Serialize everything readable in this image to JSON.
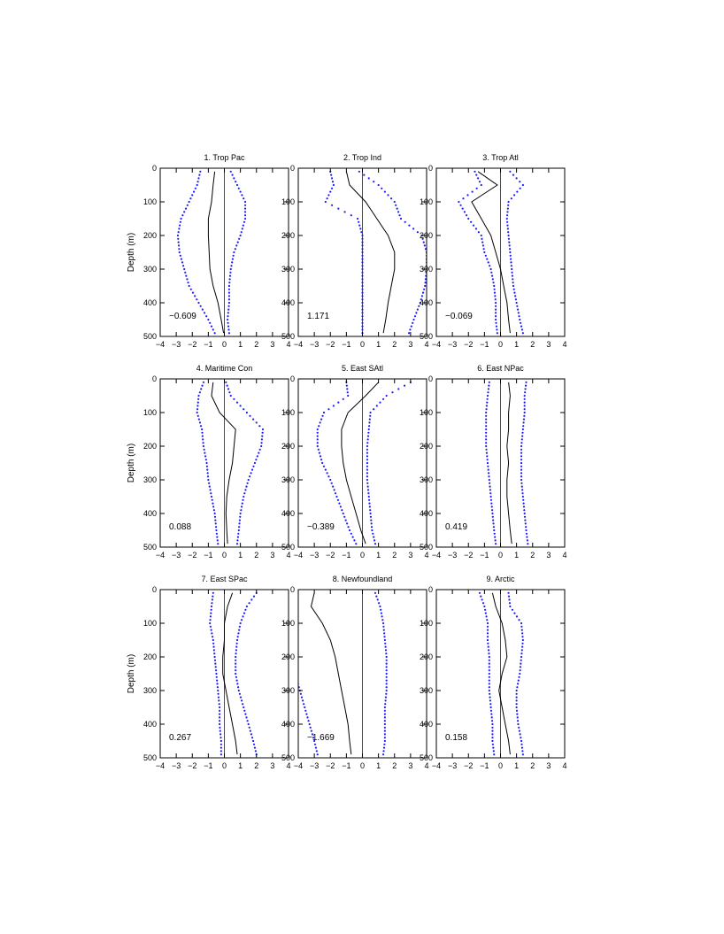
{
  "figure": {
    "ylabel": "Depth (m)"
  },
  "chart_data": [
    {
      "type": "line",
      "title": "1. Trop Pac",
      "annotation": "−0.609",
      "xlim": [
        -4,
        4
      ],
      "ylim": [
        0,
        500
      ],
      "y_inverted": true,
      "grid": false,
      "xticks": [
        -4,
        -3,
        -2,
        -1,
        0,
        1,
        2,
        3,
        4
      ],
      "yticks": [
        0,
        100,
        200,
        300,
        400,
        500
      ],
      "reference_x": 0,
      "depth": [
        10,
        50,
        100,
        150,
        200,
        250,
        300,
        350,
        400,
        450,
        490
      ],
      "mean": [
        -0.6,
        -0.7,
        -0.8,
        -1.0,
        -1.0,
        -0.95,
        -0.9,
        -0.7,
        -0.4,
        -0.2,
        -0.05
      ],
      "lower": [
        -1.5,
        -1.7,
        -2.2,
        -2.7,
        -2.9,
        -2.8,
        -2.5,
        -2.2,
        -1.6,
        -1.0,
        -0.6
      ],
      "upper": [
        0.4,
        0.8,
        1.3,
        1.3,
        1.0,
        0.6,
        0.4,
        0.3,
        0.3,
        0.2,
        0.3
      ]
    },
    {
      "type": "line",
      "title": "2. Trop Ind",
      "annotation": "1.171",
      "xlim": [
        -4,
        4
      ],
      "ylim": [
        0,
        500
      ],
      "y_inverted": true,
      "grid": false,
      "xticks": [
        -4,
        -3,
        -2,
        -1,
        0,
        1,
        2,
        3,
        4
      ],
      "yticks": [
        0,
        100,
        200,
        300,
        400,
        500
      ],
      "reference_x": 0,
      "depth": [
        10,
        50,
        100,
        150,
        200,
        250,
        300,
        350,
        400,
        450,
        490
      ],
      "mean": [
        -1.0,
        -0.8,
        0.2,
        0.9,
        1.6,
        2.0,
        2.0,
        1.8,
        1.6,
        1.45,
        1.3
      ],
      "lower": [
        -2.0,
        -1.8,
        -2.3,
        -0.3,
        0.0,
        0.0,
        0.0,
        0.0,
        0.0,
        0.0,
        0.0
      ],
      "upper": [
        -0.2,
        1.0,
        2.0,
        2.4,
        3.7,
        4.0,
        4.0,
        3.9,
        3.6,
        3.2,
        2.9
      ]
    },
    {
      "type": "line",
      "title": "3. Trop Atl",
      "annotation": "−0.069",
      "xlim": [
        -4,
        4
      ],
      "ylim": [
        0,
        500
      ],
      "y_inverted": true,
      "grid": false,
      "xticks": [
        -4,
        -3,
        -2,
        -1,
        0,
        1,
        2,
        3,
        4
      ],
      "yticks": [
        0,
        100,
        200,
        300,
        400,
        500
      ],
      "reference_x": 0,
      "depth": [
        10,
        50,
        100,
        150,
        200,
        250,
        300,
        350,
        400,
        450,
        490
      ],
      "mean": [
        -1.4,
        -0.2,
        -1.8,
        -1.2,
        -0.6,
        -0.3,
        0.0,
        0.2,
        0.4,
        0.5,
        0.6
      ],
      "lower": [
        -1.6,
        -1.2,
        -2.6,
        -2.0,
        -1.2,
        -1.0,
        -0.6,
        -0.4,
        -0.3,
        -0.3,
        -0.2
      ],
      "upper": [
        0.6,
        1.4,
        0.5,
        0.4,
        0.5,
        0.6,
        0.7,
        0.8,
        1.0,
        1.2,
        1.4
      ]
    },
    {
      "type": "line",
      "title": "4. Maritime Con",
      "annotation": "0.088",
      "xlim": [
        -4,
        4
      ],
      "ylim": [
        0,
        500
      ],
      "y_inverted": true,
      "grid": false,
      "xticks": [
        -4,
        -3,
        -2,
        -1,
        0,
        1,
        2,
        3,
        4
      ],
      "yticks": [
        0,
        100,
        200,
        300,
        400,
        500
      ],
      "reference_x": 0,
      "depth": [
        10,
        50,
        100,
        150,
        200,
        250,
        300,
        350,
        400,
        450,
        490
      ],
      "mean": [
        -0.7,
        -0.8,
        -0.3,
        0.7,
        0.6,
        0.5,
        0.3,
        0.15,
        0.1,
        0.15,
        0.2
      ],
      "lower": [
        -1.3,
        -1.6,
        -1.7,
        -1.4,
        -1.3,
        -1.1,
        -1.0,
        -0.8,
        -0.6,
        -0.5,
        -0.4
      ],
      "upper": [
        0.1,
        0.4,
        1.4,
        2.4,
        2.3,
        1.9,
        1.5,
        1.2,
        1.0,
        0.9,
        0.8
      ]
    },
    {
      "type": "line",
      "title": "5. East SAtl",
      "annotation": "−0.389",
      "xlim": [
        -4,
        4
      ],
      "ylim": [
        0,
        500
      ],
      "y_inverted": true,
      "grid": false,
      "xticks": [
        -4,
        -3,
        -2,
        -1,
        0,
        1,
        2,
        3,
        4
      ],
      "yticks": [
        0,
        100,
        200,
        300,
        400,
        500
      ],
      "reference_x": 0,
      "depth": [
        10,
        50,
        100,
        150,
        200,
        250,
        300,
        350,
        400,
        450,
        490
      ],
      "mean": [
        1.0,
        0.2,
        -0.9,
        -1.3,
        -1.3,
        -1.2,
        -1.0,
        -0.7,
        -0.4,
        -0.1,
        0.2
      ],
      "lower": [
        -1.0,
        -0.9,
        -2.4,
        -2.8,
        -2.8,
        -2.5,
        -2.0,
        -1.6,
        -1.2,
        -0.8,
        -0.4
      ],
      "upper": [
        3.0,
        1.5,
        0.5,
        0.4,
        0.3,
        0.3,
        0.3,
        0.4,
        0.5,
        0.6,
        0.8
      ]
    },
    {
      "type": "line",
      "title": "6. East NPac",
      "annotation": "0.419",
      "xlim": [
        -4,
        4
      ],
      "ylim": [
        0,
        500
      ],
      "y_inverted": true,
      "grid": false,
      "xticks": [
        -4,
        -3,
        -2,
        -1,
        0,
        1,
        2,
        3,
        4
      ],
      "yticks": [
        0,
        100,
        200,
        300,
        400,
        500
      ],
      "reference_x": 0,
      "depth": [
        10,
        50,
        100,
        150,
        200,
        250,
        300,
        350,
        400,
        450,
        490
      ],
      "mean": [
        0.5,
        0.6,
        0.5,
        0.5,
        0.4,
        0.5,
        0.4,
        0.4,
        0.5,
        0.6,
        0.7
      ],
      "lower": [
        -0.7,
        -0.8,
        -0.9,
        -0.9,
        -0.9,
        -0.8,
        -0.7,
        -0.6,
        -0.5,
        -0.4,
        -0.3
      ],
      "upper": [
        1.6,
        1.5,
        1.5,
        1.4,
        1.3,
        1.3,
        1.3,
        1.4,
        1.5,
        1.6,
        1.7
      ]
    },
    {
      "type": "line",
      "title": "7. East SPac",
      "annotation": "0.267",
      "xlim": [
        -4,
        4
      ],
      "ylim": [
        0,
        500
      ],
      "y_inverted": true,
      "grid": false,
      "xticks": [
        -4,
        -3,
        -2,
        -1,
        0,
        1,
        2,
        3,
        4
      ],
      "yticks": [
        0,
        100,
        200,
        300,
        400,
        500
      ],
      "reference_x": 0,
      "depth": [
        10,
        50,
        100,
        150,
        200,
        250,
        300,
        350,
        400,
        450,
        490
      ],
      "mean": [
        0.5,
        0.2,
        0.0,
        0.0,
        -0.1,
        -0.1,
        0.1,
        0.3,
        0.5,
        0.7,
        0.8
      ],
      "lower": [
        -0.7,
        -0.8,
        -0.9,
        -0.7,
        -0.6,
        -0.5,
        -0.4,
        -0.3,
        -0.3,
        -0.2,
        -0.2
      ],
      "upper": [
        2.0,
        1.4,
        1.0,
        0.8,
        0.7,
        0.7,
        0.9,
        1.2,
        1.5,
        1.8,
        2.0
      ]
    },
    {
      "type": "line",
      "title": "8. Newfoundland",
      "annotation": "−1.669",
      "xlim": [
        -4,
        4
      ],
      "ylim": [
        0,
        500
      ],
      "y_inverted": true,
      "grid": false,
      "xticks": [
        -4,
        -3,
        -2,
        -1,
        0,
        1,
        2,
        3,
        4
      ],
      "yticks": [
        0,
        100,
        200,
        300,
        400,
        500
      ],
      "reference_x": 0,
      "depth": [
        10,
        50,
        100,
        150,
        200,
        250,
        300,
        350,
        400,
        450,
        490
      ],
      "mean": [
        -3.0,
        -3.2,
        -2.5,
        -2.0,
        -1.7,
        -1.5,
        -1.3,
        -1.1,
        -0.9,
        -0.8,
        -0.7
      ],
      "lower": [
        -5.0,
        -5.0,
        -5.0,
        -5.0,
        -5.0,
        -4.2,
        -3.9,
        -3.6,
        -3.3,
        -3.0,
        -2.8
      ],
      "upper": [
        0.8,
        1.1,
        1.3,
        1.4,
        1.5,
        1.5,
        1.5,
        1.4,
        1.4,
        1.4,
        1.3
      ]
    },
    {
      "type": "line",
      "title": "9. Arctic",
      "annotation": "0.158",
      "xlim": [
        -4,
        4
      ],
      "ylim": [
        0,
        500
      ],
      "y_inverted": true,
      "grid": false,
      "xticks": [
        -4,
        -3,
        -2,
        -1,
        0,
        1,
        2,
        3,
        4
      ],
      "yticks": [
        0,
        100,
        200,
        300,
        400,
        500
      ],
      "reference_x": 0,
      "depth": [
        10,
        50,
        100,
        150,
        200,
        250,
        300,
        350,
        400,
        450,
        490
      ],
      "mean": [
        -0.5,
        -0.3,
        0.1,
        0.3,
        0.4,
        0.1,
        -0.1,
        0.1,
        0.3,
        0.5,
        0.6
      ],
      "lower": [
        -1.3,
        -1.0,
        -0.8,
        -0.8,
        -0.7,
        -0.7,
        -0.7,
        -0.6,
        -0.5,
        -0.5,
        -0.4
      ],
      "upper": [
        0.5,
        0.6,
        1.3,
        1.4,
        1.3,
        1.2,
        1.0,
        1.0,
        1.1,
        1.3,
        1.4
      ]
    }
  ]
}
